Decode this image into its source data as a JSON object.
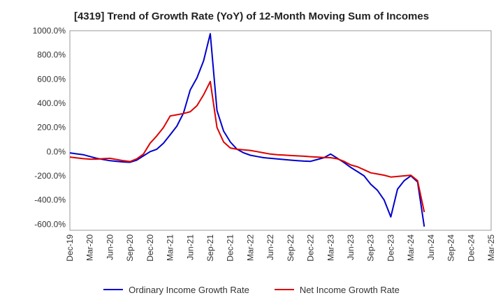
{
  "chart_data": {
    "type": "line",
    "title": "[4319]  Trend of Growth Rate (YoY) of 12-Month Moving Sum of Incomes",
    "xlabel": "",
    "ylabel": "",
    "ylim": [
      -650,
      1000
    ],
    "y_ticks": [
      1000,
      800,
      600,
      400,
      200,
      0,
      -200,
      -400,
      -600
    ],
    "y_tick_labels": [
      "1000.0%",
      "800.0%",
      "600.0%",
      "400.0%",
      "200.0%",
      "0.0%",
      "-200.0%",
      "-400.0%",
      "-600.0%"
    ],
    "x_tick_labels": [
      "Dec-19",
      "Mar-20",
      "Jun-20",
      "Sep-20",
      "Dec-20",
      "Mar-21",
      "Jun-21",
      "Sep-21",
      "Dec-21",
      "Mar-22",
      "Jun-22",
      "Sep-22",
      "Dec-22",
      "Mar-23",
      "Jun-23",
      "Sep-23",
      "Dec-23",
      "Mar-24",
      "Jun-24",
      "Sep-24",
      "Dec-24",
      "Mar-25"
    ],
    "x_range": [
      "2019-12",
      "2025-03"
    ],
    "grid": true,
    "legend_position": "bottom",
    "series": [
      {
        "name": "Ordinary Income Growth Rate",
        "color": "#0000cc",
        "x": [
          "2019-12",
          "2020-01",
          "2020-02",
          "2020-03",
          "2020-04",
          "2020-05",
          "2020-06",
          "2020-07",
          "2020-08",
          "2020-09",
          "2020-10",
          "2020-11",
          "2020-12",
          "2021-01",
          "2021-02",
          "2021-03",
          "2021-04",
          "2021-05",
          "2021-06",
          "2021-07",
          "2021-08",
          "2021-09",
          "2021-10",
          "2021-11",
          "2021-12",
          "2022-01",
          "2022-02",
          "2022-03",
          "2022-04",
          "2022-05",
          "2022-06",
          "2022-07",
          "2022-08",
          "2022-09",
          "2022-10",
          "2022-11",
          "2022-12",
          "2023-01",
          "2023-02",
          "2023-03",
          "2023-04",
          "2023-05",
          "2023-06",
          "2023-07",
          "2023-08",
          "2023-09",
          "2023-10",
          "2023-11",
          "2023-12",
          "2024-01",
          "2024-02",
          "2024-03",
          "2024-04",
          "2024-05"
        ],
        "values": [
          -10,
          -18,
          -25,
          -40,
          -55,
          -65,
          -75,
          -80,
          -85,
          -88,
          -70,
          -35,
          0,
          20,
          70,
          140,
          210,
          320,
          510,
          610,
          750,
          975,
          340,
          170,
          80,
          20,
          -10,
          -30,
          -40,
          -50,
          -55,
          -60,
          -65,
          -70,
          -75,
          -78,
          -80,
          -65,
          -50,
          -20,
          -55,
          -90,
          -130,
          -165,
          -200,
          -270,
          -320,
          -400,
          -540,
          -310,
          -240,
          -200,
          -250,
          -620
        ]
      },
      {
        "name": "Net Income Growth Rate",
        "color": "#dd0000",
        "x": [
          "2019-12",
          "2020-01",
          "2020-02",
          "2020-03",
          "2020-04",
          "2020-05",
          "2020-06",
          "2020-07",
          "2020-08",
          "2020-09",
          "2020-10",
          "2020-11",
          "2020-12",
          "2021-01",
          "2021-02",
          "2021-03",
          "2021-04",
          "2021-05",
          "2021-06",
          "2021-07",
          "2021-08",
          "2021-09",
          "2021-10",
          "2021-11",
          "2021-12",
          "2022-01",
          "2022-02",
          "2022-03",
          "2022-04",
          "2022-05",
          "2022-06",
          "2022-07",
          "2022-08",
          "2022-09",
          "2022-10",
          "2022-11",
          "2022-12",
          "2023-01",
          "2023-02",
          "2023-03",
          "2023-04",
          "2023-05",
          "2023-06",
          "2023-07",
          "2023-08",
          "2023-09",
          "2023-10",
          "2023-11",
          "2023-12",
          "2024-01",
          "2024-02",
          "2024-03",
          "2024-04",
          "2024-05"
        ],
        "values": [
          -45,
          -52,
          -58,
          -62,
          -62,
          -58,
          -55,
          -65,
          -75,
          -82,
          -60,
          -20,
          70,
          130,
          200,
          295,
          305,
          315,
          330,
          380,
          470,
          580,
          200,
          80,
          30,
          20,
          15,
          10,
          0,
          -10,
          -20,
          -25,
          -28,
          -32,
          -35,
          -38,
          -42,
          -45,
          -48,
          -50,
          -60,
          -80,
          -110,
          -125,
          -150,
          -175,
          -185,
          -195,
          -210,
          -205,
          -200,
          -195,
          -240,
          -500
        ]
      }
    ]
  }
}
